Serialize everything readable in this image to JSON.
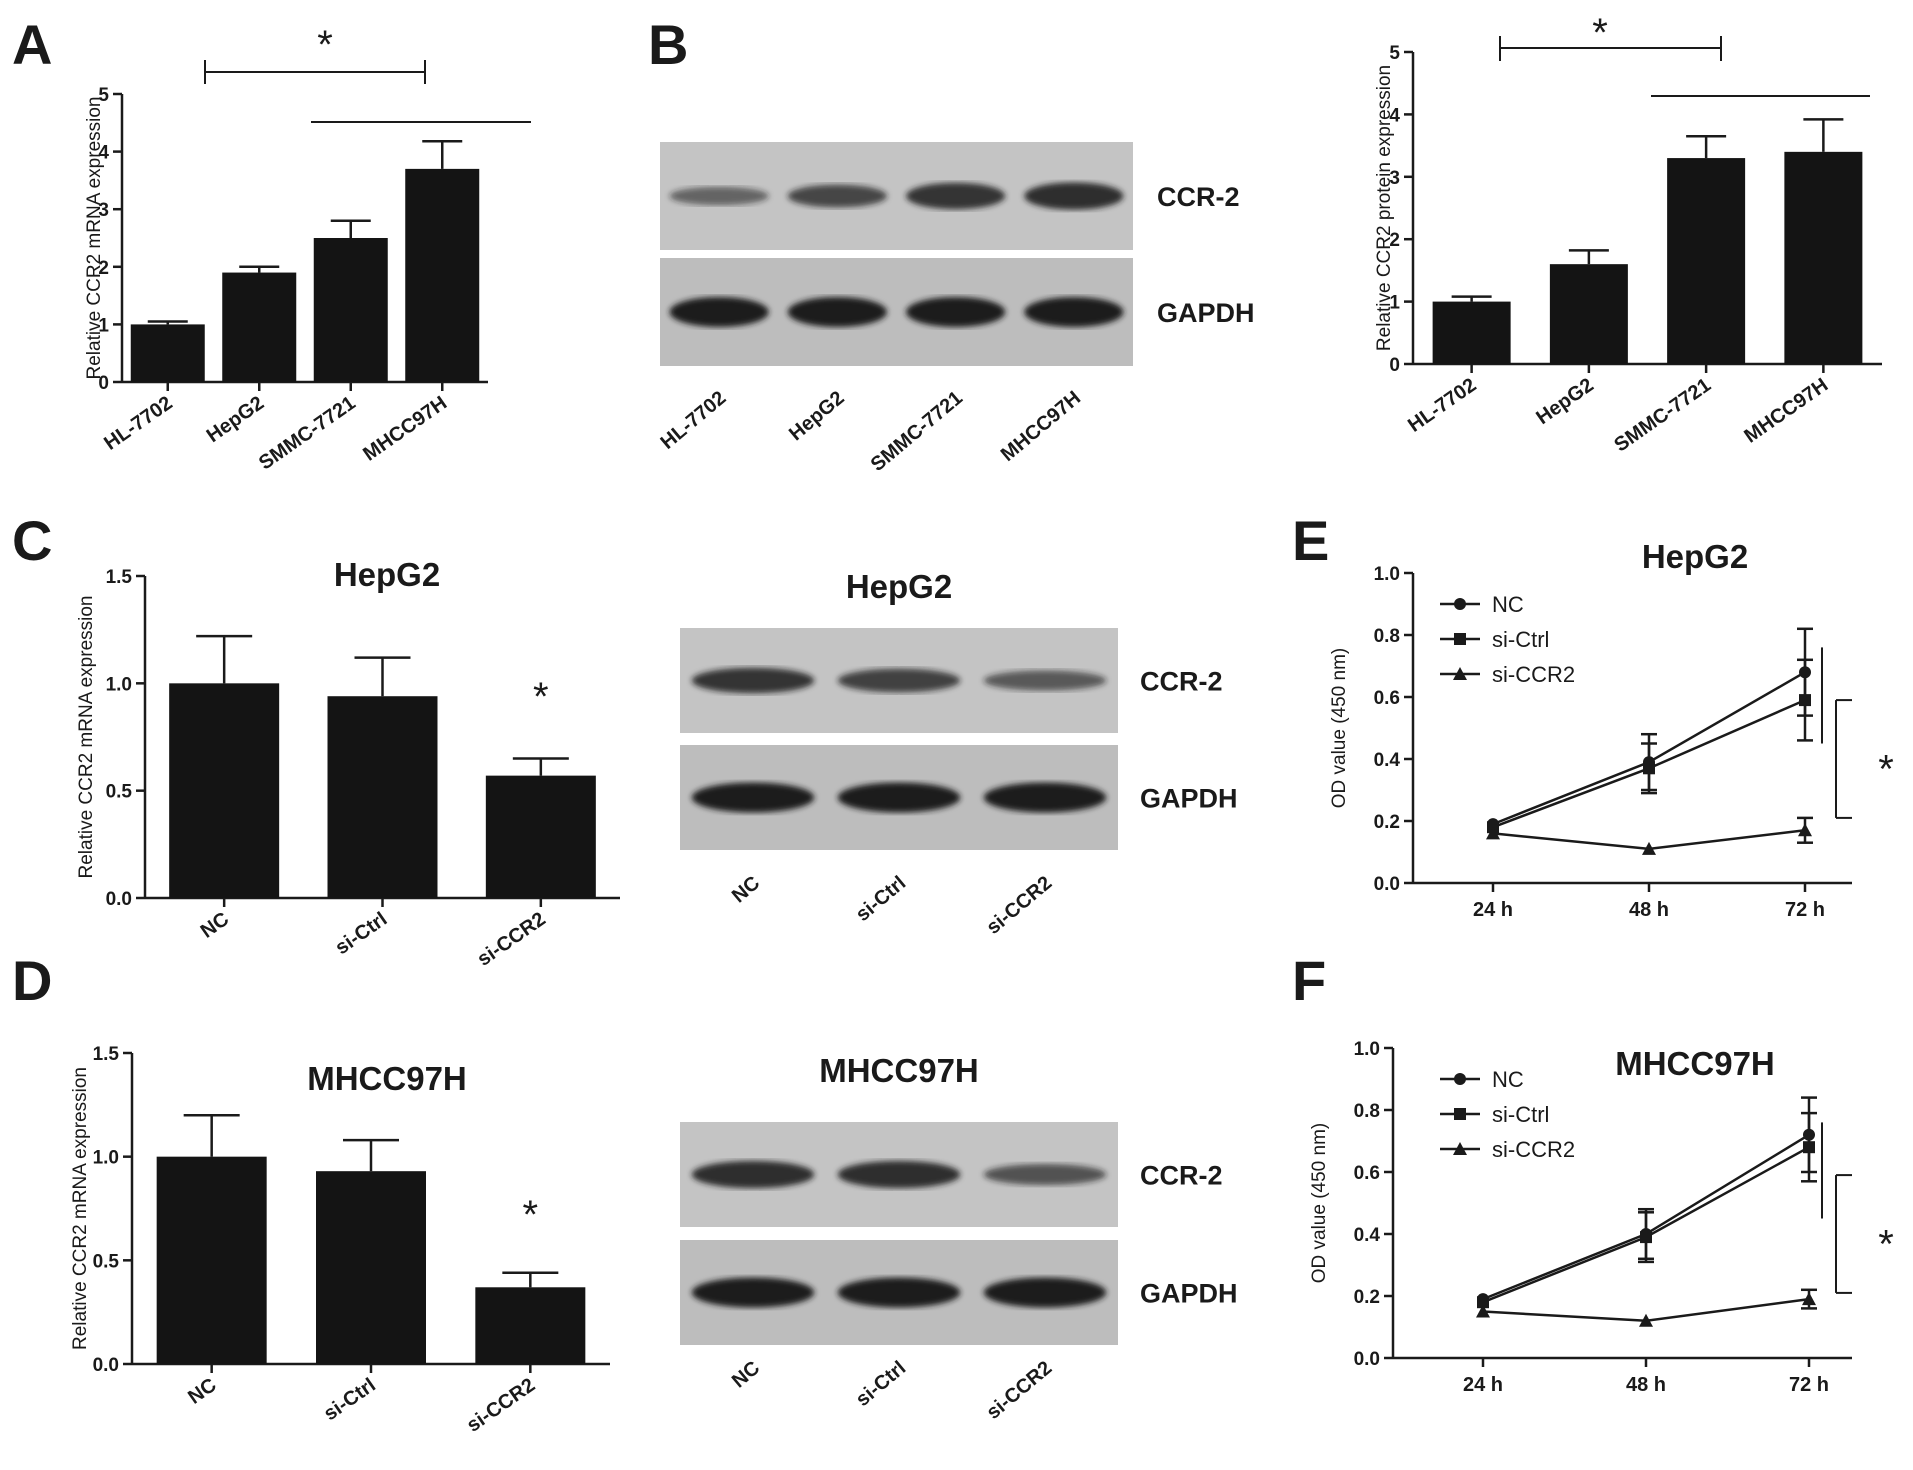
{
  "panel_labels": {
    "A": "A",
    "B": "B",
    "C": "C",
    "D": "D",
    "E": "E",
    "F": "F"
  },
  "colors": {
    "bar": "#141414",
    "line": "#1a1a1a",
    "blot_bg": "#cfcfcf",
    "band": "#1c1c1c"
  },
  "chart_data": [
    {
      "id": "A",
      "type": "bar",
      "ylabel": "Relative CCR2 mRNA expression",
      "categories": [
        "HL-7702",
        "HepG2",
        "SMMC-7721",
        "MHCC97H"
      ],
      "values": [
        1.0,
        1.9,
        2.5,
        3.7
      ],
      "errors": [
        0.05,
        0.1,
        0.3,
        0.48
      ],
      "ylim": [
        0,
        5
      ],
      "yticks": [
        "0",
        "1",
        "2",
        "3",
        "4",
        "5"
      ],
      "annotation": "*"
    },
    {
      "id": "B-quant",
      "type": "bar",
      "ylabel": "Relative CCR2 protein expression",
      "categories": [
        "HL-7702",
        "HepG2",
        "SMMC-7721",
        "MHCC97H"
      ],
      "values": [
        1.0,
        1.6,
        3.3,
        3.4
      ],
      "errors": [
        0.08,
        0.22,
        0.35,
        0.52
      ],
      "ylim": [
        0,
        5
      ],
      "yticks": [
        "0",
        "1",
        "2",
        "3",
        "4",
        "5"
      ],
      "annotation": "*"
    },
    {
      "id": "C",
      "type": "bar",
      "title": "HepG2",
      "ylabel": "Relative CCR2 mRNA expression",
      "categories": [
        "NC",
        "si-Ctrl",
        "si-CCR2"
      ],
      "values": [
        1.0,
        0.94,
        0.57
      ],
      "errors": [
        0.22,
        0.18,
        0.08
      ],
      "ylim": [
        0,
        1.5
      ],
      "yticks": [
        "0.0",
        "0.5",
        "1.0",
        "1.5"
      ],
      "annotation": "*"
    },
    {
      "id": "D",
      "type": "bar",
      "title": "MHCC97H",
      "ylabel": "Relative CCR2 mRNA expression",
      "categories": [
        "NC",
        "si-Ctrl",
        "si-CCR2"
      ],
      "values": [
        1.0,
        0.93,
        0.37
      ],
      "errors": [
        0.2,
        0.15,
        0.07
      ],
      "ylim": [
        0,
        1.5
      ],
      "yticks": [
        "0.0",
        "0.5",
        "1.0",
        "1.5"
      ],
      "annotation": "*"
    },
    {
      "id": "E",
      "type": "line",
      "title": "HepG2",
      "ylabel": "OD value (450 nm)",
      "x": [
        "24 h",
        "48 h",
        "72 h"
      ],
      "ylim": [
        0,
        1.0
      ],
      "yticks": [
        "0.0",
        "0.2",
        "0.4",
        "0.6",
        "0.8",
        "1.0"
      ],
      "series": [
        {
          "name": "NC",
          "marker": "circle",
          "values": [
            0.19,
            0.39,
            0.68
          ],
          "errors": [
            0.01,
            0.09,
            0.14
          ]
        },
        {
          "name": "si-Ctrl",
          "marker": "square",
          "values": [
            0.18,
            0.37,
            0.59
          ],
          "errors": [
            0.01,
            0.08,
            0.13
          ]
        },
        {
          "name": "si-CCR2",
          "marker": "triangle",
          "values": [
            0.16,
            0.11,
            0.17
          ],
          "errors": [
            0.01,
            0.01,
            0.04
          ]
        }
      ],
      "legend": "top-left",
      "annotation": "*"
    },
    {
      "id": "F",
      "type": "line",
      "title": "MHCC97H",
      "ylabel": "OD value (450 nm)",
      "x": [
        "24 h",
        "48 h",
        "72 h"
      ],
      "ylim": [
        0,
        1.0
      ],
      "yticks": [
        "0.0",
        "0.2",
        "0.4",
        "0.6",
        "0.8",
        "1.0"
      ],
      "series": [
        {
          "name": "NC",
          "marker": "circle",
          "values": [
            0.19,
            0.4,
            0.72
          ],
          "errors": [
            0.01,
            0.08,
            0.12
          ]
        },
        {
          "name": "si-Ctrl",
          "marker": "square",
          "values": [
            0.18,
            0.39,
            0.68
          ],
          "errors": [
            0.01,
            0.08,
            0.11
          ]
        },
        {
          "name": "si-CCR2",
          "marker": "triangle",
          "values": [
            0.15,
            0.12,
            0.19
          ],
          "errors": [
            0.01,
            0.01,
            0.03
          ]
        }
      ],
      "legend": "top-left",
      "annotation": "*"
    }
  ],
  "blots": [
    {
      "id": "B-blot",
      "title": "",
      "lanes": [
        "HL-7702",
        "HepG2",
        "SMMC-7721",
        "MHCC97H"
      ],
      "rows": [
        {
          "label": "CCR-2",
          "intensities": [
            0.35,
            0.6,
            0.8,
            0.85
          ]
        },
        {
          "label": "GAPDH",
          "intensities": [
            1.0,
            1.0,
            1.0,
            1.0
          ]
        }
      ]
    },
    {
      "id": "C-blot",
      "title": "HepG2",
      "lanes": [
        "NC",
        "si-Ctrl",
        "si-CCR2"
      ],
      "rows": [
        {
          "label": "CCR-2",
          "intensities": [
            0.75,
            0.65,
            0.45
          ]
        },
        {
          "label": "GAPDH",
          "intensities": [
            1.0,
            1.0,
            1.0
          ]
        }
      ]
    },
    {
      "id": "D-blot",
      "title": "MHCC97H",
      "lanes": [
        "NC",
        "si-Ctrl",
        "si-CCR2"
      ],
      "rows": [
        {
          "label": "CCR-2",
          "intensities": [
            0.85,
            0.85,
            0.5
          ]
        },
        {
          "label": "GAPDH",
          "intensities": [
            1.0,
            1.0,
            1.0
          ]
        }
      ]
    }
  ]
}
